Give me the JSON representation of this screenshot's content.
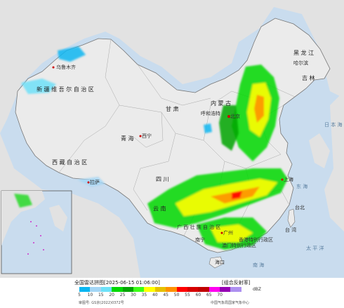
{
  "map": {
    "title": "全国雷达拼图",
    "timestamp": "[2025-06-15 01:06:00]",
    "product": "[组合反射率]",
    "unit": "dBZ",
    "review_number": "审图号: GS京(2022)0372号",
    "source": "中国气象局国家气象中心",
    "colors": {
      "land": "#e9e9e9",
      "sea": "#c9dcee",
      "border": "#777777",
      "province_border": "#aaaaaa"
    },
    "legend": {
      "ticks": [
        "5",
        "10",
        "15",
        "20",
        "25",
        "30",
        "35",
        "40",
        "45",
        "50",
        "55",
        "60",
        "65",
        "70"
      ],
      "colors": [
        "#0ab6f1",
        "#a4d6f5",
        "#6ee1f8",
        "#00d800",
        "#01a400",
        "#3cfe17",
        "#ffff00",
        "#e6c000",
        "#ff9100",
        "#ff0000",
        "#d60000",
        "#c00000",
        "#ff00f0",
        "#9600b4",
        "#ad90f0"
      ]
    },
    "place_labels": {
      "heilongjiang": "黑 龙 江",
      "jilin": "吉 林",
      "xinjiang": "新 疆 维 吾 尔 自 治 区",
      "xizang": "西 藏 自 治 区",
      "qinghai": "青 海",
      "gansu": "甘 肃",
      "neimenggu": "内 蒙 古",
      "sichuan": "四 川",
      "yunnan": "云 南",
      "guangxi": "广 西 壮 族 自 治 区",
      "taiwan": "台 湾",
      "urumqi": "乌鲁木齐",
      "lhasa": "拉萨",
      "xining": "西宁",
      "harbin": "哈尔滨",
      "hohhot": "呼和浩特",
      "beijing": "北京",
      "shanghai": "上海",
      "nanning": "南宁",
      "haikou": "海口",
      "guangzhou": "广州",
      "hongkong": "香港特别行政区",
      "macau": "澳门特别行政区",
      "taipei": "台北",
      "pacific": "太 平 洋",
      "donghai": "东 海",
      "nanhai": "南 海",
      "sea_of_japan": "日 本 海"
    }
  }
}
